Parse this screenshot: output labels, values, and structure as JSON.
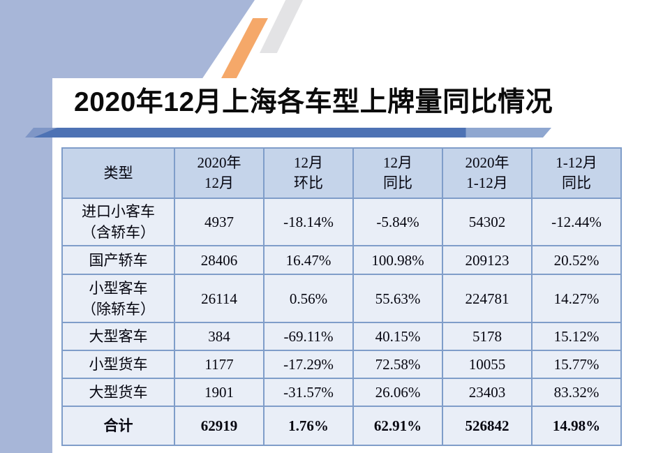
{
  "slide": {
    "title": "2020年12月上海各车型上牌量同比情况"
  },
  "table": {
    "headers": [
      "类型",
      "2020年\n12月",
      "12月\n环比",
      "12月\n同比",
      "2020年\n1-12月",
      "1-12月\n同比"
    ],
    "rows": [
      {
        "is_total": false,
        "cells": [
          "进口小客车\n（含轿车）",
          "4937",
          "-18.14%",
          "-5.84%",
          "54302",
          "-12.44%"
        ]
      },
      {
        "is_total": false,
        "cells": [
          "国产轿车",
          "28406",
          "16.47%",
          "100.98%",
          "209123",
          "20.52%"
        ]
      },
      {
        "is_total": false,
        "cells": [
          "小型客车\n（除轿车）",
          "26114",
          "0.56%",
          "55.63%",
          "224781",
          "14.27%"
        ]
      },
      {
        "is_total": false,
        "cells": [
          "大型客车",
          "384",
          "-69.11%",
          "40.15%",
          "5178",
          "15.12%"
        ]
      },
      {
        "is_total": false,
        "cells": [
          "小型货车",
          "1177",
          "-17.29%",
          "72.58%",
          "10055",
          "15.77%"
        ]
      },
      {
        "is_total": false,
        "cells": [
          "大型货车",
          "1901",
          "-31.57%",
          "26.06%",
          "23403",
          "83.32%"
        ]
      },
      {
        "is_total": true,
        "cells": [
          "合计",
          "62919",
          "1.76%",
          "62.91%",
          "526842",
          "14.98%"
        ]
      }
    ]
  },
  "colors": {
    "left_panel": "#a7b6d8",
    "accent_orange": "#f5a869",
    "accent_gray": "#e3e3e5",
    "title_bar_dark": "#4d72b4",
    "title_bar_light": "#8fa7d0",
    "title_bar_cap": "#7f96c6",
    "table_header_bg": "#c5d4ea",
    "table_row_bg": "#e9eef7",
    "table_border": "#7f9dc9"
  }
}
